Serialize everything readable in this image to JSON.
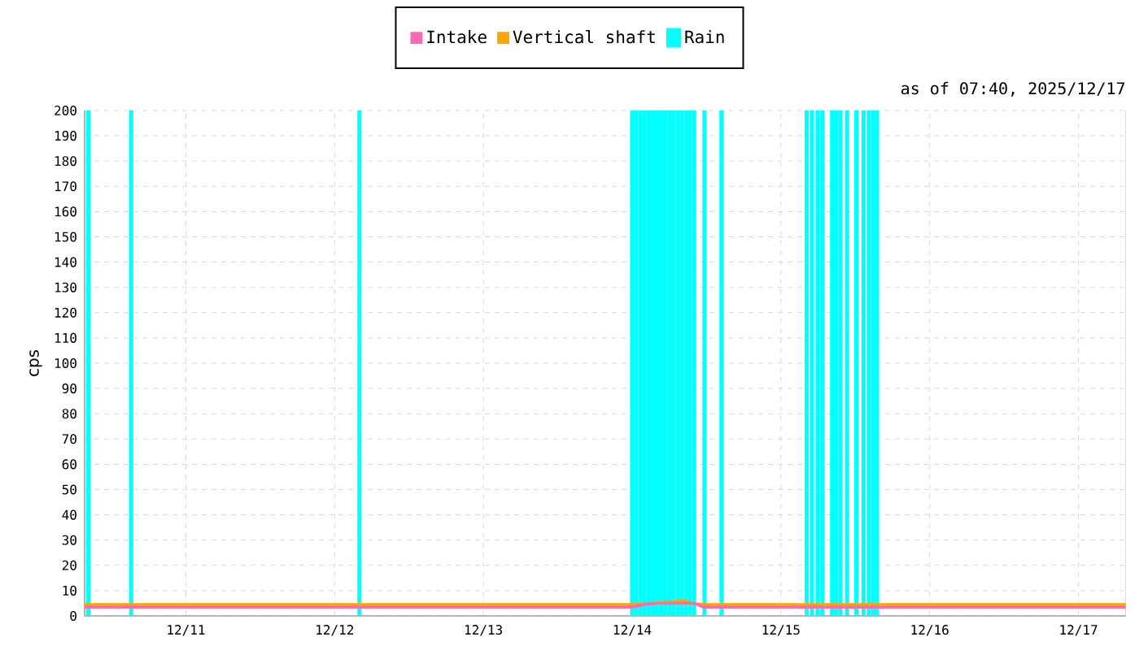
{
  "chart_data": {
    "type": "line",
    "ylabel": "cps",
    "annotations": [
      "as of 07:40, 2025/12/17"
    ],
    "legend": "top",
    "grid": true,
    "xlim": [
      "2025-12-10T07:40",
      "2025-12-17T07:40"
    ],
    "xticks": [
      {
        "value": "2025-12-11",
        "label": "12/11"
      },
      {
        "value": "2025-12-12",
        "label": "12/12"
      },
      {
        "value": "2025-12-13",
        "label": "12/13"
      },
      {
        "value": "2025-12-14",
        "label": "12/14"
      },
      {
        "value": "2025-12-15",
        "label": "12/15"
      },
      {
        "value": "2025-12-16",
        "label": "12/16"
      },
      {
        "value": "2025-12-17",
        "label": "12/17"
      }
    ],
    "ylim": [
      0,
      200
    ],
    "yticks": [
      0,
      10,
      20,
      30,
      40,
      50,
      60,
      70,
      80,
      90,
      100,
      110,
      120,
      130,
      140,
      150,
      160,
      170,
      180,
      190,
      200
    ],
    "series": [
      {
        "name": "Intake",
        "color": "#ff69b4",
        "x": [
          "2025-12-10T07:40",
          "2025-12-10T12:00",
          "2025-12-10T18:00",
          "2025-12-11T00:00",
          "2025-12-11T06:00",
          "2025-12-11T12:00",
          "2025-12-11T18:00",
          "2025-12-12T00:00",
          "2025-12-12T06:00",
          "2025-12-12T12:00",
          "2025-12-12T18:00",
          "2025-12-13T00:00",
          "2025-12-13T06:00",
          "2025-12-13T12:00",
          "2025-12-13T18:00",
          "2025-12-14T00:00",
          "2025-12-14T02:00",
          "2025-12-14T04:00",
          "2025-12-14T07:00",
          "2025-12-14T10:00",
          "2025-12-14T11:30",
          "2025-12-14T18:00",
          "2025-12-15T00:00",
          "2025-12-15T06:00",
          "2025-12-15T12:00",
          "2025-12-15T18:00",
          "2025-12-16T00:00",
          "2025-12-16T06:00",
          "2025-12-16T12:00",
          "2025-12-16T18:00",
          "2025-12-17T00:00",
          "2025-12-17T07:40"
        ],
        "values": [
          3.5,
          3.5,
          3.5,
          3.5,
          3.5,
          3.5,
          3.5,
          3.5,
          3.5,
          3.5,
          3.5,
          3.5,
          3.5,
          3.5,
          3.5,
          3.5,
          4.5,
          5,
          5,
          5,
          3.5,
          3.5,
          3.5,
          3.5,
          3.5,
          3.5,
          3.5,
          3.5,
          3.5,
          3.5,
          3.5,
          3.5
        ]
      },
      {
        "name": "Vertical shaft",
        "color": "#ffa500",
        "x": [
          "2025-12-10T07:40",
          "2025-12-10T12:00",
          "2025-12-10T18:00",
          "2025-12-11T00:00",
          "2025-12-11T06:00",
          "2025-12-11T12:00",
          "2025-12-11T18:00",
          "2025-12-12T00:00",
          "2025-12-12T06:00",
          "2025-12-12T12:00",
          "2025-12-12T18:00",
          "2025-12-13T00:00",
          "2025-12-13T06:00",
          "2025-12-13T12:00",
          "2025-12-13T18:00",
          "2025-12-14T00:00",
          "2025-12-14T03:00",
          "2025-12-14T08:30",
          "2025-12-14T09:30",
          "2025-12-14T11:30",
          "2025-12-14T18:00",
          "2025-12-15T00:00",
          "2025-12-15T06:00",
          "2025-12-15T12:00",
          "2025-12-15T18:00",
          "2025-12-16T00:00",
          "2025-12-16T06:00",
          "2025-12-16T12:00",
          "2025-12-16T18:00",
          "2025-12-17T00:00",
          "2025-12-17T07:40"
        ],
        "values": [
          4.5,
          4.5,
          4.5,
          4.5,
          4.5,
          4.5,
          4.5,
          4.5,
          4.5,
          4.5,
          4.5,
          4.5,
          4.5,
          4.5,
          4.5,
          4.5,
          5,
          6,
          5,
          4.5,
          4.5,
          4.5,
          4.5,
          4.5,
          4.5,
          4.5,
          4.5,
          4.5,
          4.5,
          4.5,
          4.5
        ]
      },
      {
        "name": "Rain",
        "color": "#00ffff",
        "type": "bar",
        "x": [
          "2025-12-10T08:15",
          "2025-12-10T15:10",
          "2025-12-12T04:00",
          "2025-12-14T00:00",
          "2025-12-14T00:40",
          "2025-12-14T01:20",
          "2025-12-14T02:00",
          "2025-12-14T02:40",
          "2025-12-14T03:20",
          "2025-12-14T04:00",
          "2025-12-14T04:40",
          "2025-12-14T05:20",
          "2025-12-14T06:00",
          "2025-12-14T06:40",
          "2025-12-14T07:20",
          "2025-12-14T08:00",
          "2025-12-14T08:40",
          "2025-12-14T09:20",
          "2025-12-14T10:00",
          "2025-12-14T11:40",
          "2025-12-14T14:25",
          "2025-12-15T04:10",
          "2025-12-15T05:00",
          "2025-12-15T05:55",
          "2025-12-15T06:40",
          "2025-12-15T08:15",
          "2025-12-15T08:55",
          "2025-12-15T09:35",
          "2025-12-15T10:40",
          "2025-12-15T12:10",
          "2025-12-15T13:20",
          "2025-12-15T14:10",
          "2025-12-15T14:50",
          "2025-12-15T15:30"
        ],
        "values": [
          200,
          200,
          200,
          200,
          200,
          200,
          200,
          200,
          200,
          200,
          200,
          200,
          200,
          200,
          200,
          200,
          200,
          200,
          200,
          200,
          200,
          200,
          200,
          200,
          200,
          200,
          200,
          200,
          200,
          200,
          200,
          200,
          200,
          200
        ]
      }
    ]
  }
}
